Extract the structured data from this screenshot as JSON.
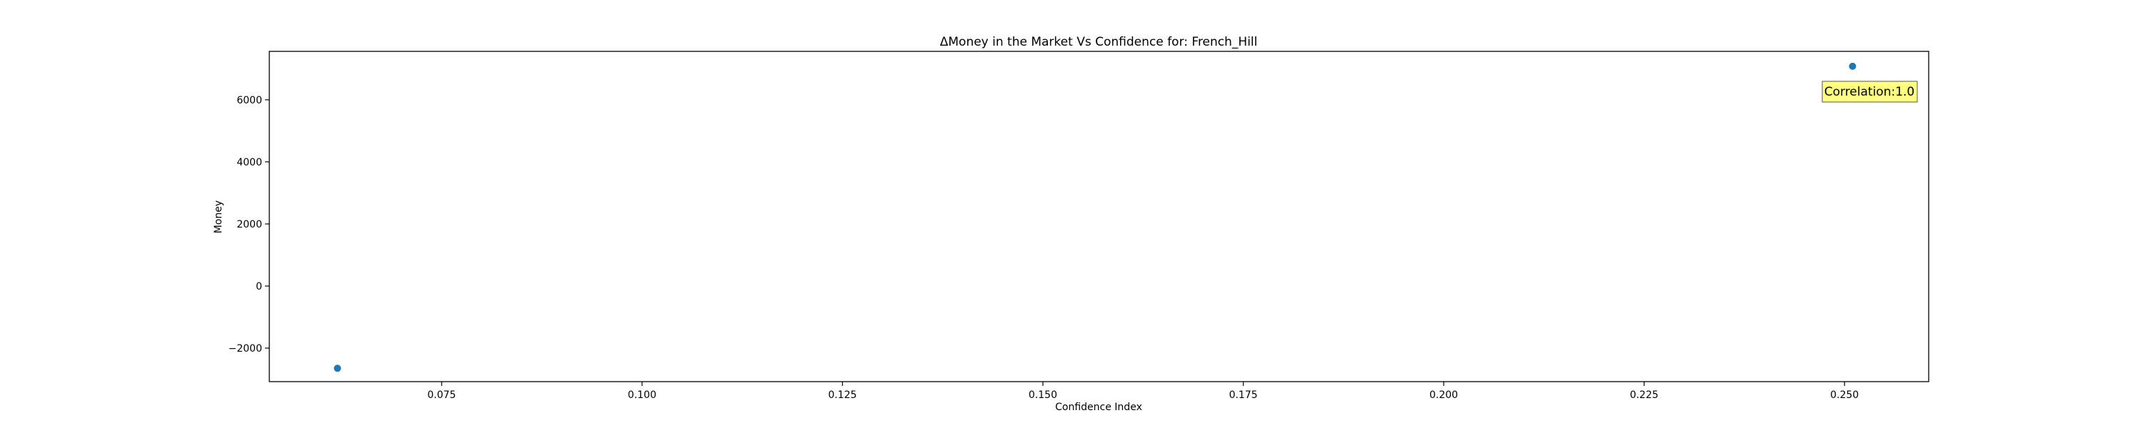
{
  "chart_data": {
    "type": "scatter",
    "title": "ΔMoney in the Market Vs Confidence for: French_Hill",
    "xlabel": "Confidence Index",
    "ylabel": "Money",
    "xlim": [
      0.0535,
      0.2605
    ],
    "ylim": [
      -3080,
      7560
    ],
    "xticks": [
      0.075,
      0.1,
      0.125,
      0.15,
      0.175,
      0.2,
      0.225,
      0.25
    ],
    "xtick_labels": [
      "0.075",
      "0.100",
      "0.125",
      "0.150",
      "0.175",
      "0.200",
      "0.225",
      "0.250"
    ],
    "yticks": [
      -2000,
      0,
      2000,
      4000,
      6000
    ],
    "ytick_labels": [
      "−2000",
      "0",
      "2000",
      "4000",
      "6000"
    ],
    "points": [
      {
        "x": 0.062,
        "y": -2650
      },
      {
        "x": 0.251,
        "y": 7080
      }
    ],
    "marker_color": "#1f77b4",
    "grid": false,
    "annotation": {
      "text": "Correlation:1.0",
      "position": "top-right",
      "box_color": "#ffff80"
    }
  }
}
